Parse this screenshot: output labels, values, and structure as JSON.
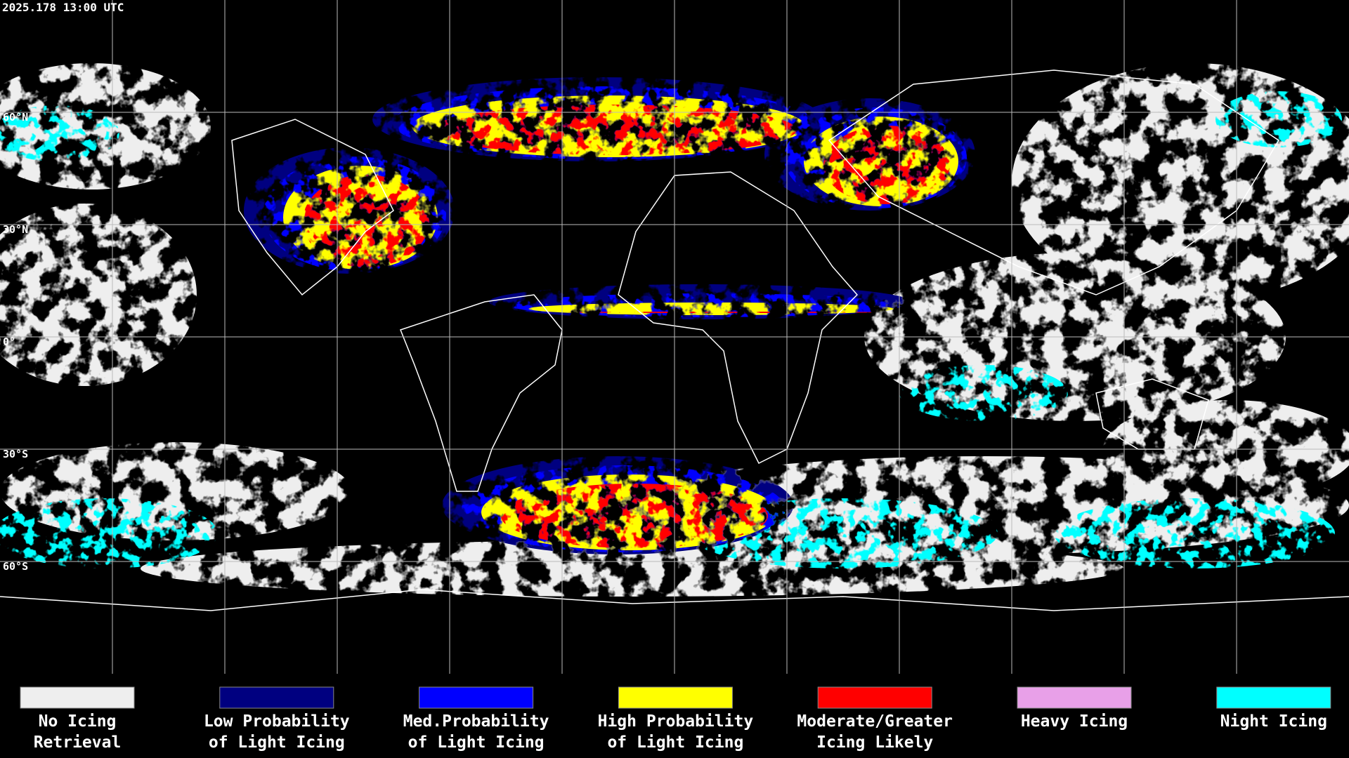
{
  "header": {
    "timestamp": "2025.178 13:00 UTC"
  },
  "map": {
    "latitude_labels": [
      "60°N",
      "30°N",
      "0°",
      "30°S",
      "60°S"
    ]
  },
  "legend": {
    "items": [
      {
        "lines": [
          "No Icing",
          "Retrieval"
        ],
        "color": "#eeeeee"
      },
      {
        "lines": [
          "Low Probability",
          "of Light Icing"
        ],
        "color": "#000080"
      },
      {
        "lines": [
          "Med.Probability",
          "of Light Icing"
        ],
        "color": "#0000ff"
      },
      {
        "lines": [
          "High Probability",
          "of Light Icing"
        ],
        "color": "#ffff00"
      },
      {
        "lines": [
          "Moderate/Greater",
          "Icing Likely"
        ],
        "color": "#ff0000"
      },
      {
        "lines": [
          "Heavy Icing"
        ],
        "color": "#e8a0e8"
      },
      {
        "lines": [
          "Night Icing"
        ],
        "color": "#00ffff"
      }
    ]
  }
}
